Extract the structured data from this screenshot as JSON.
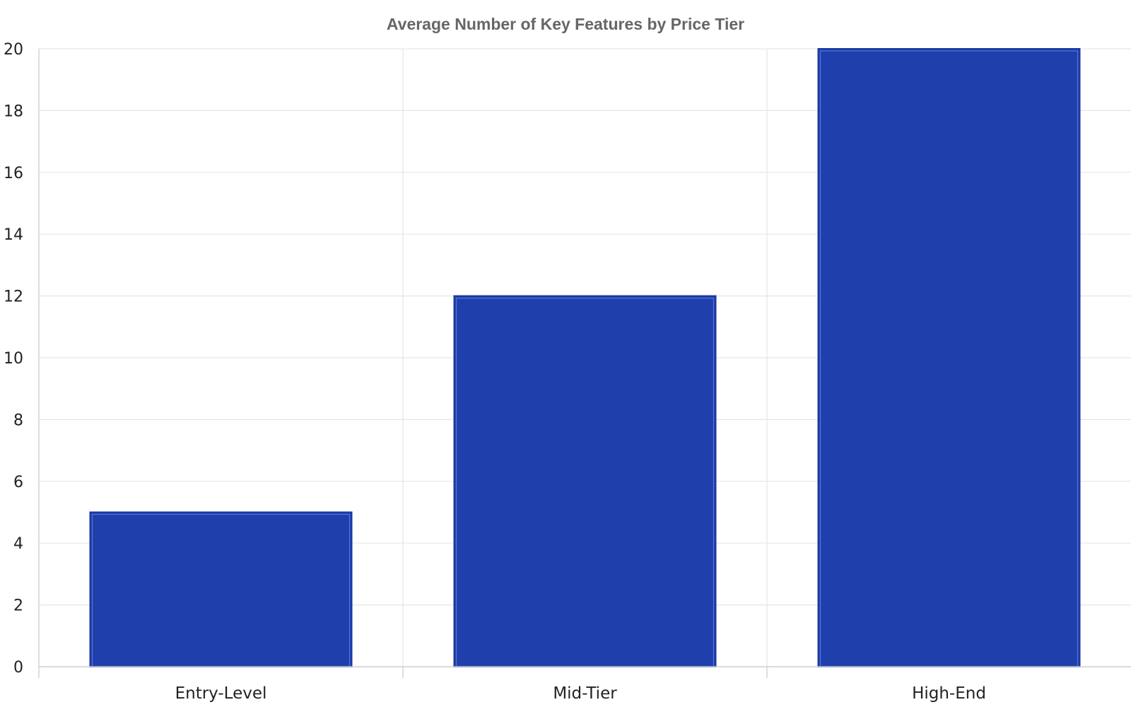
{
  "chart_data": {
    "type": "bar",
    "title": "Average Number of Key Features by Price Tier",
    "xlabel": "",
    "ylabel": "",
    "categories": [
      "Entry-Level",
      "Mid-Tier",
      "High-End"
    ],
    "values": [
      5,
      12,
      20
    ],
    "ylim": [
      0,
      20
    ],
    "yticks": [
      0,
      2,
      4,
      6,
      8,
      10,
      12,
      14,
      16,
      18,
      20
    ],
    "ytick_labels": [
      "0",
      "2",
      "4",
      "6",
      "8",
      "10",
      "12",
      "14",
      "16",
      "18",
      "20"
    ],
    "grid": true,
    "legend": "none",
    "colors": {
      "bar_fill": "#1f3fad",
      "bar_edge": "#1a38a0",
      "grid": "#e6e6e6",
      "title": "#666666"
    }
  }
}
